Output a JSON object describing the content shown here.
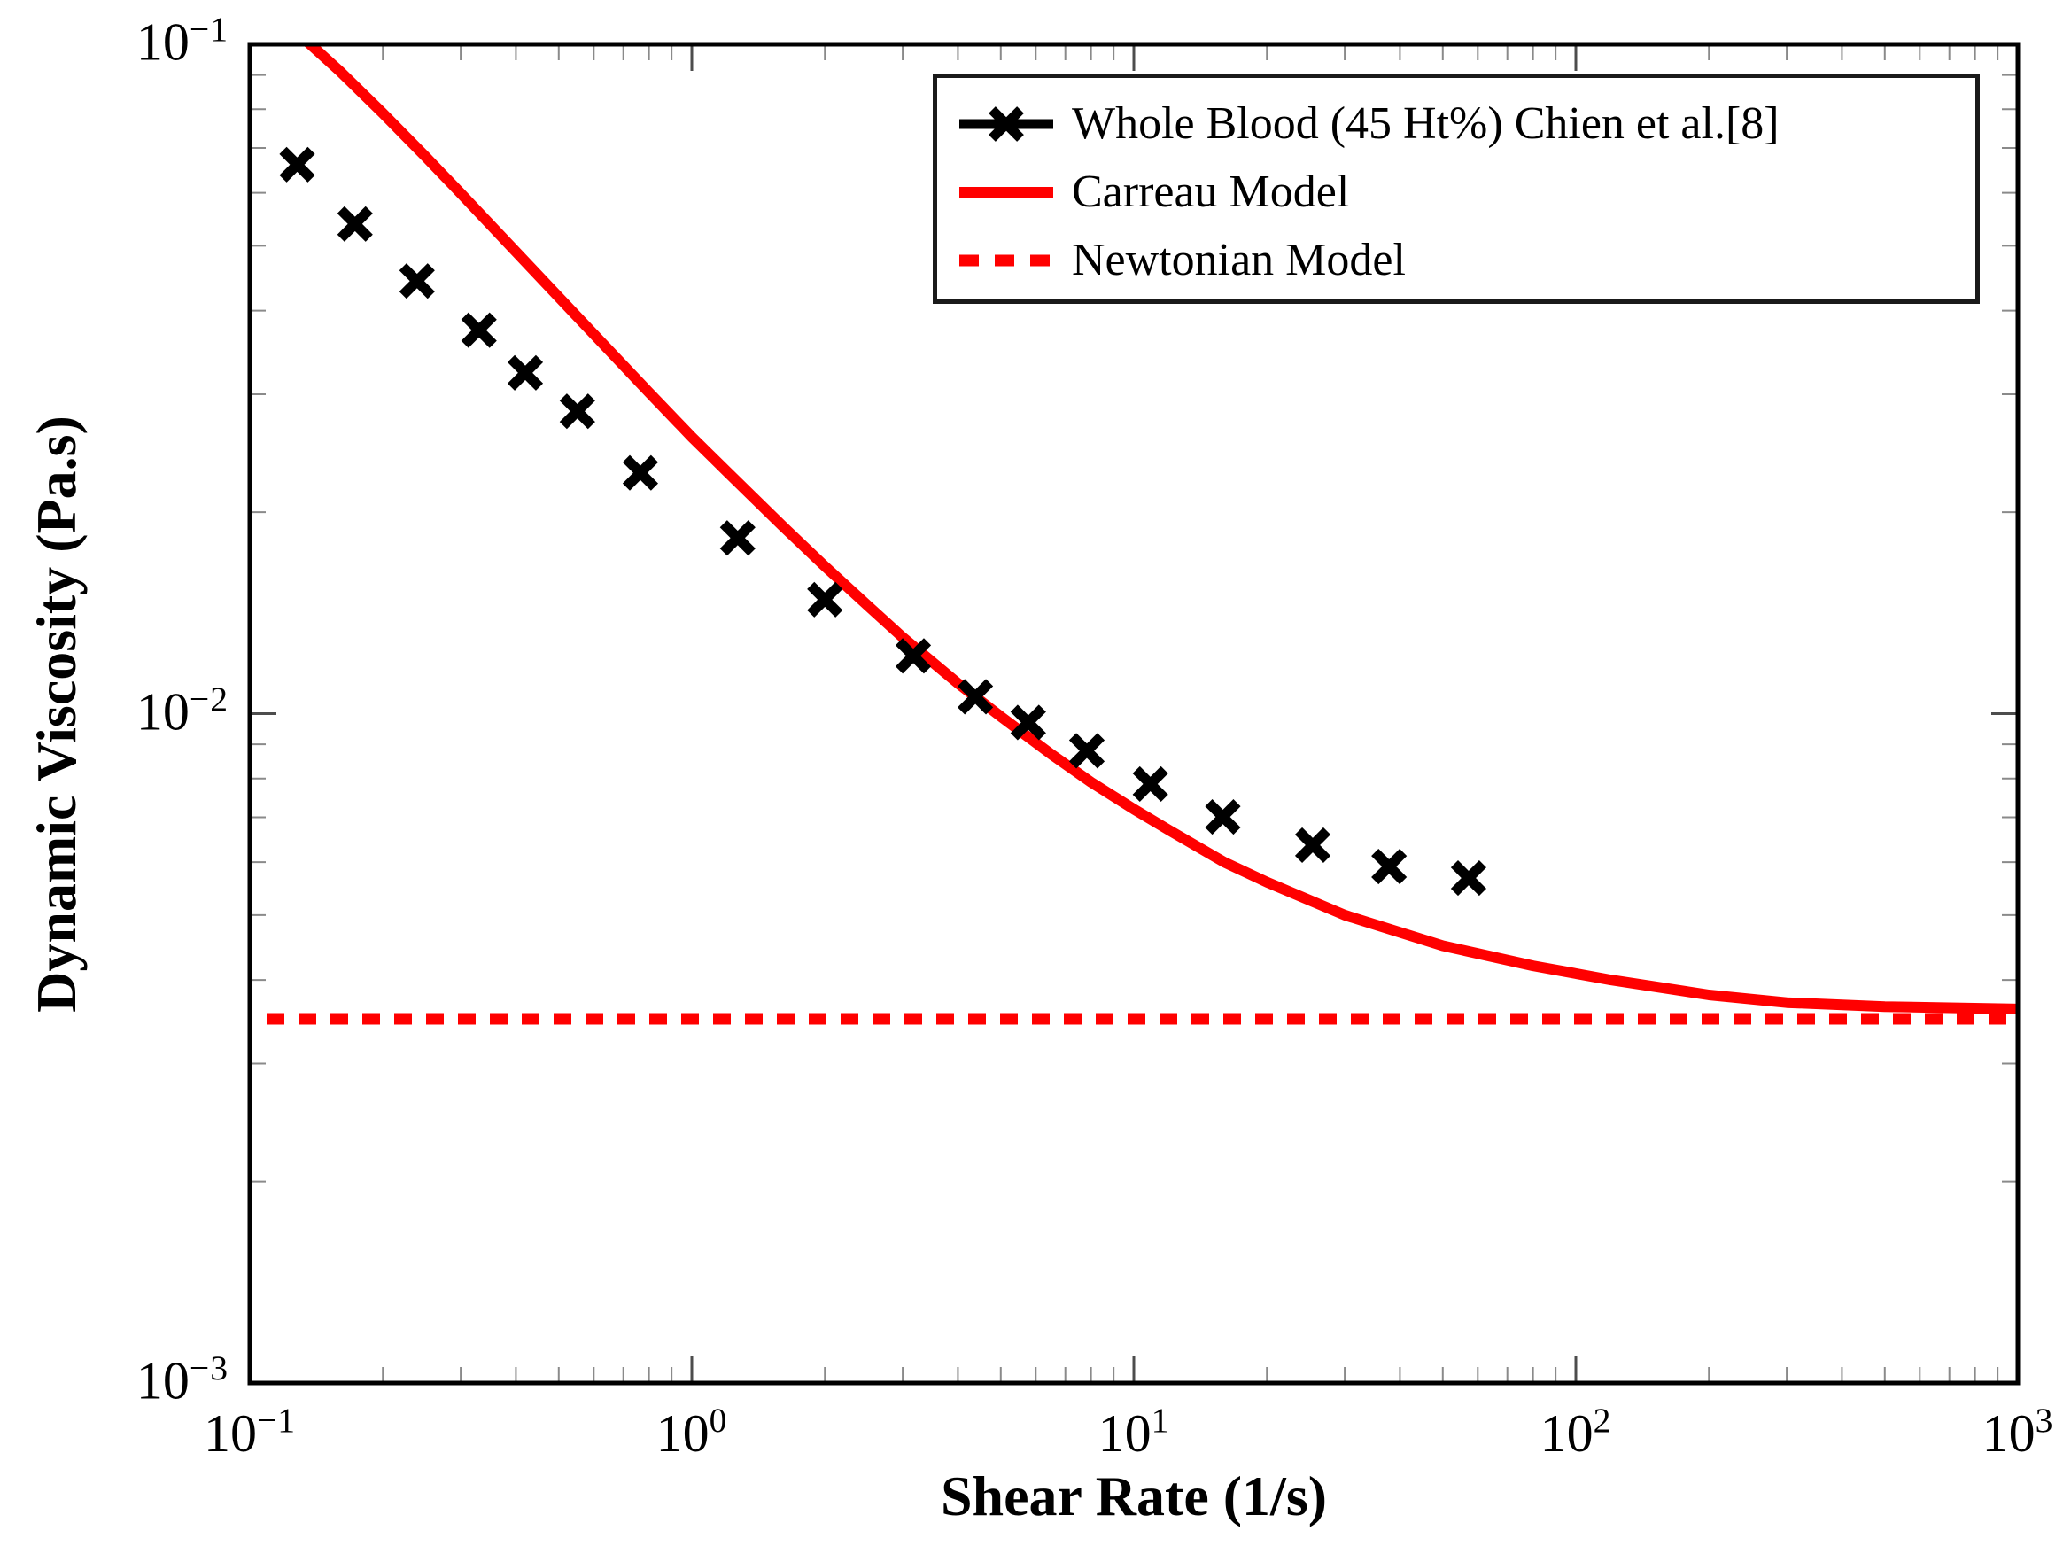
{
  "figure_title": "",
  "axes": {
    "xlabel": "Shear Rate (1/s)",
    "ylabel": "Dynamic Viscosity (Pa.s)"
  },
  "legend": {
    "items": [
      {
        "label": "Whole Blood (45 Ht%) Chien et al.[8]",
        "style": "line-with-x-marker",
        "color": "#000000"
      },
      {
        "label": "Carreau Model",
        "style": "solid-line",
        "color": "#ff0000"
      },
      {
        "label": "Newtonian Model",
        "style": "dashed-line",
        "color": "#ff0000"
      }
    ]
  },
  "chart_data": {
    "type": "scatter",
    "title": "",
    "xlabel": "Shear Rate (1/s)",
    "ylabel": "Dynamic Viscosity (Pa.s)",
    "x_axis": {
      "scale": "log",
      "min": 0.1,
      "max": 1000,
      "ticks": [
        {
          "v": 0.1,
          "base": "10",
          "exp": "−1"
        },
        {
          "v": 1,
          "base": "10",
          "exp": "0"
        },
        {
          "v": 10,
          "base": "10",
          "exp": "1"
        },
        {
          "v": 100,
          "base": "10",
          "exp": "2"
        },
        {
          "v": 1000,
          "base": "10",
          "exp": "3"
        }
      ]
    },
    "y_axis": {
      "scale": "log",
      "min": 0.001,
      "max": 0.1,
      "ticks": [
        {
          "v": 0.1,
          "base": "10",
          "exp": "−1"
        },
        {
          "v": 0.01,
          "base": "10",
          "exp": "−2"
        },
        {
          "v": 0.001,
          "base": "10",
          "exp": "−3"
        }
      ]
    },
    "series": [
      {
        "name": "Whole Blood (45 Ht%) Chien et al.[8]",
        "type": "scatter",
        "marker": "x",
        "color": "#000000",
        "x": [
          0.128,
          0.173,
          0.239,
          0.33,
          0.42,
          0.551,
          0.765,
          1.27,
          2.0,
          3.17,
          4.38,
          5.77,
          7.83,
          10.9,
          15.9,
          25.4,
          37.8,
          57.2
        ],
        "y": [
          0.0661,
          0.0539,
          0.0443,
          0.0374,
          0.0323,
          0.0283,
          0.0229,
          0.0183,
          0.0148,
          0.0122,
          0.0106,
          0.0097,
          0.0088,
          0.00785,
          0.00701,
          0.00636,
          0.00591,
          0.00568
        ]
      },
      {
        "name": "Carreau Model",
        "type": "line",
        "color": "#ff0000",
        "linewidth": 12,
        "x": [
          0.1,
          0.11,
          0.12,
          0.137,
          0.16,
          0.2,
          0.25,
          0.3,
          0.4,
          0.5,
          0.65,
          0.8,
          1.0,
          1.2,
          1.6,
          2.0,
          2.5,
          3.0,
          4.0,
          5.0,
          6.5,
          8.0,
          10,
          12,
          16,
          20,
          30,
          50,
          80,
          120,
          200,
          300,
          500,
          1000
        ],
        "y": [
          0.1191,
          0.1134,
          0.1081,
          0.1,
          0.0911,
          0.0789,
          0.0679,
          0.0599,
          0.049,
          0.0419,
          0.0349,
          0.0302,
          0.0259,
          0.023,
          0.0191,
          0.0166,
          0.0145,
          0.013,
          0.0111,
          0.0099,
          0.0087,
          0.0079,
          0.0072,
          0.0067,
          0.006,
          0.0056,
          0.005,
          0.0045,
          0.0042,
          0.004,
          0.0038,
          0.0037,
          0.00365,
          0.00362
        ]
      },
      {
        "name": "Newtonian Model",
        "type": "line",
        "color": "#ff0000",
        "linewidth": 13,
        "dash": [
          20,
          16
        ],
        "x": [
          0.1,
          1000
        ],
        "y": [
          0.0035,
          0.0035
        ]
      }
    ],
    "legend_position": "upper right",
    "grid": false
  }
}
